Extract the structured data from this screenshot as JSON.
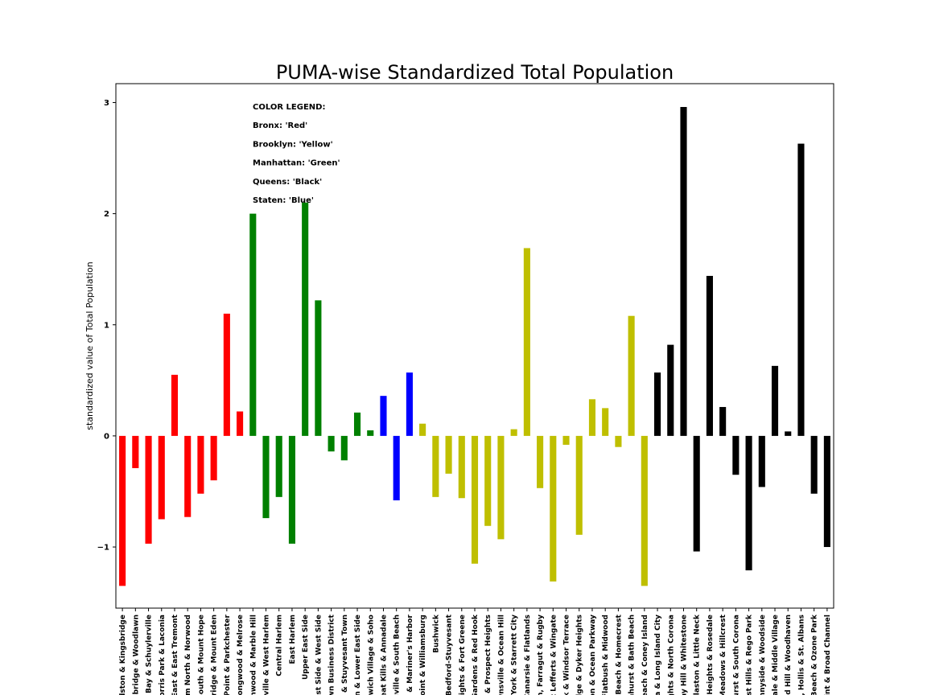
{
  "chart_data": {
    "type": "bar",
    "title": "PUMA-wise Standardized Total Population",
    "xlabel": "",
    "ylabel": "standardized value of Total Population",
    "ylim": [
      -1.55,
      3.17
    ],
    "yticks": [
      -1,
      0,
      1,
      2,
      3
    ],
    "grid": false,
    "legend_text": [
      "COLOR LEGEND:",
      "Bronx: 'Red'",
      "Brooklyn: 'Yellow'",
      "Manhattan: 'Green'",
      "Queens: 'Black'",
      "Staten: 'Blue'"
    ],
    "colors": {
      "Bronx": "#ff0000",
      "Brooklyn": "#bfbf00",
      "Manhattan": "#008000",
      "Queens": "#000000",
      "Staten": "#0000ff"
    },
    "categories": [
      "eldston & Kingsbridge",
      "nsbridge & Woodlawn",
      "m Bay & Schuylerville",
      "Morris Park & Laconia",
      "k East & East Tremont",
      "ham North & Norwood",
      "n South & Mount Hope",
      "nbridge & Mount Eden",
      "n Point & Parkchester",
      ", Longwood & Melrose",
      ", Inwood & Marble Hill",
      "anville & West Harlem",
      "Central Harlem",
      "East Harlem",
      "Upper East Side",
      "West Side & West Side",
      "town Business District",
      "cy & Stuyvesant Town",
      "own & Lower East Side",
      "enwich Village & Soho",
      "Great Kills & Annadale",
      "ngville & South Beach",
      "on & Mariner's Harbor",
      "npoint & Williamsburg",
      "Bushwick",
      "Bedford-Stuyvesant",
      "Heights & Fort Greene",
      "ll Gardens & Red Hook",
      "th & Prospect Heights",
      "ownsville & Ocean Hill",
      "w York & Starrett City",
      "Canarsie & Flatlands",
      "sh, Farragut & Rugby",
      "st Lefferts & Wingate",
      "ark & Windsor Terrace",
      "Ridge & Dyker Heights",
      "gton & Ocean Parkway",
      "Flatbush & Midwood",
      "n Beach & Homecrest",
      "onhurst & Bath Beach",
      "Beach & Coney Island",
      "ria & Long Island City",
      "eights & North Corona",
      "rray Hill & Whitestone",
      "uglaston & Little Neck",
      "a Heights & Rosedale",
      "h Meadows & Hillcrest",
      "nhurst & South Corona",
      "rest Hills & Rego Park",
      "unnyside & Woodside",
      "ndale & Middle Village",
      "ond Hill & Woodhaven",
      "ca, Hollis & St. Albans",
      "d Beach & Ozone Park",
      "Point & Broad Channel"
    ],
    "values": [
      -1.35,
      -0.29,
      -0.97,
      -0.75,
      0.55,
      -0.73,
      -0.52,
      -0.4,
      1.1,
      0.22,
      2.0,
      -0.74,
      -0.55,
      -0.97,
      2.1,
      1.22,
      -0.14,
      -0.22,
      0.21,
      0.05,
      0.36,
      -0.58,
      0.57,
      0.11,
      -0.55,
      -0.34,
      -0.56,
      -1.15,
      -0.81,
      -0.93,
      0.06,
      1.69,
      -0.47,
      -1.31,
      -0.08,
      -0.89,
      0.33,
      0.25,
      -0.1,
      1.08,
      -1.35,
      0.57,
      0.82,
      2.96,
      -1.04,
      1.44,
      0.26,
      -0.35,
      -1.21,
      -0.46,
      0.63,
      0.04,
      2.63,
      -0.52,
      -1.0
    ],
    "series_color_keys": [
      "Bronx",
      "Bronx",
      "Bronx",
      "Bronx",
      "Bronx",
      "Bronx",
      "Bronx",
      "Bronx",
      "Bronx",
      "Bronx",
      "Manhattan",
      "Manhattan",
      "Manhattan",
      "Manhattan",
      "Manhattan",
      "Manhattan",
      "Manhattan",
      "Manhattan",
      "Manhattan",
      "Manhattan",
      "Staten",
      "Staten",
      "Staten",
      "Brooklyn",
      "Brooklyn",
      "Brooklyn",
      "Brooklyn",
      "Brooklyn",
      "Brooklyn",
      "Brooklyn",
      "Brooklyn",
      "Brooklyn",
      "Brooklyn",
      "Brooklyn",
      "Brooklyn",
      "Brooklyn",
      "Brooklyn",
      "Brooklyn",
      "Brooklyn",
      "Brooklyn",
      "Brooklyn",
      "Queens",
      "Queens",
      "Queens",
      "Queens",
      "Queens",
      "Queens",
      "Queens",
      "Queens",
      "Queens",
      "Queens",
      "Queens",
      "Queens",
      "Queens",
      "Queens"
    ]
  }
}
